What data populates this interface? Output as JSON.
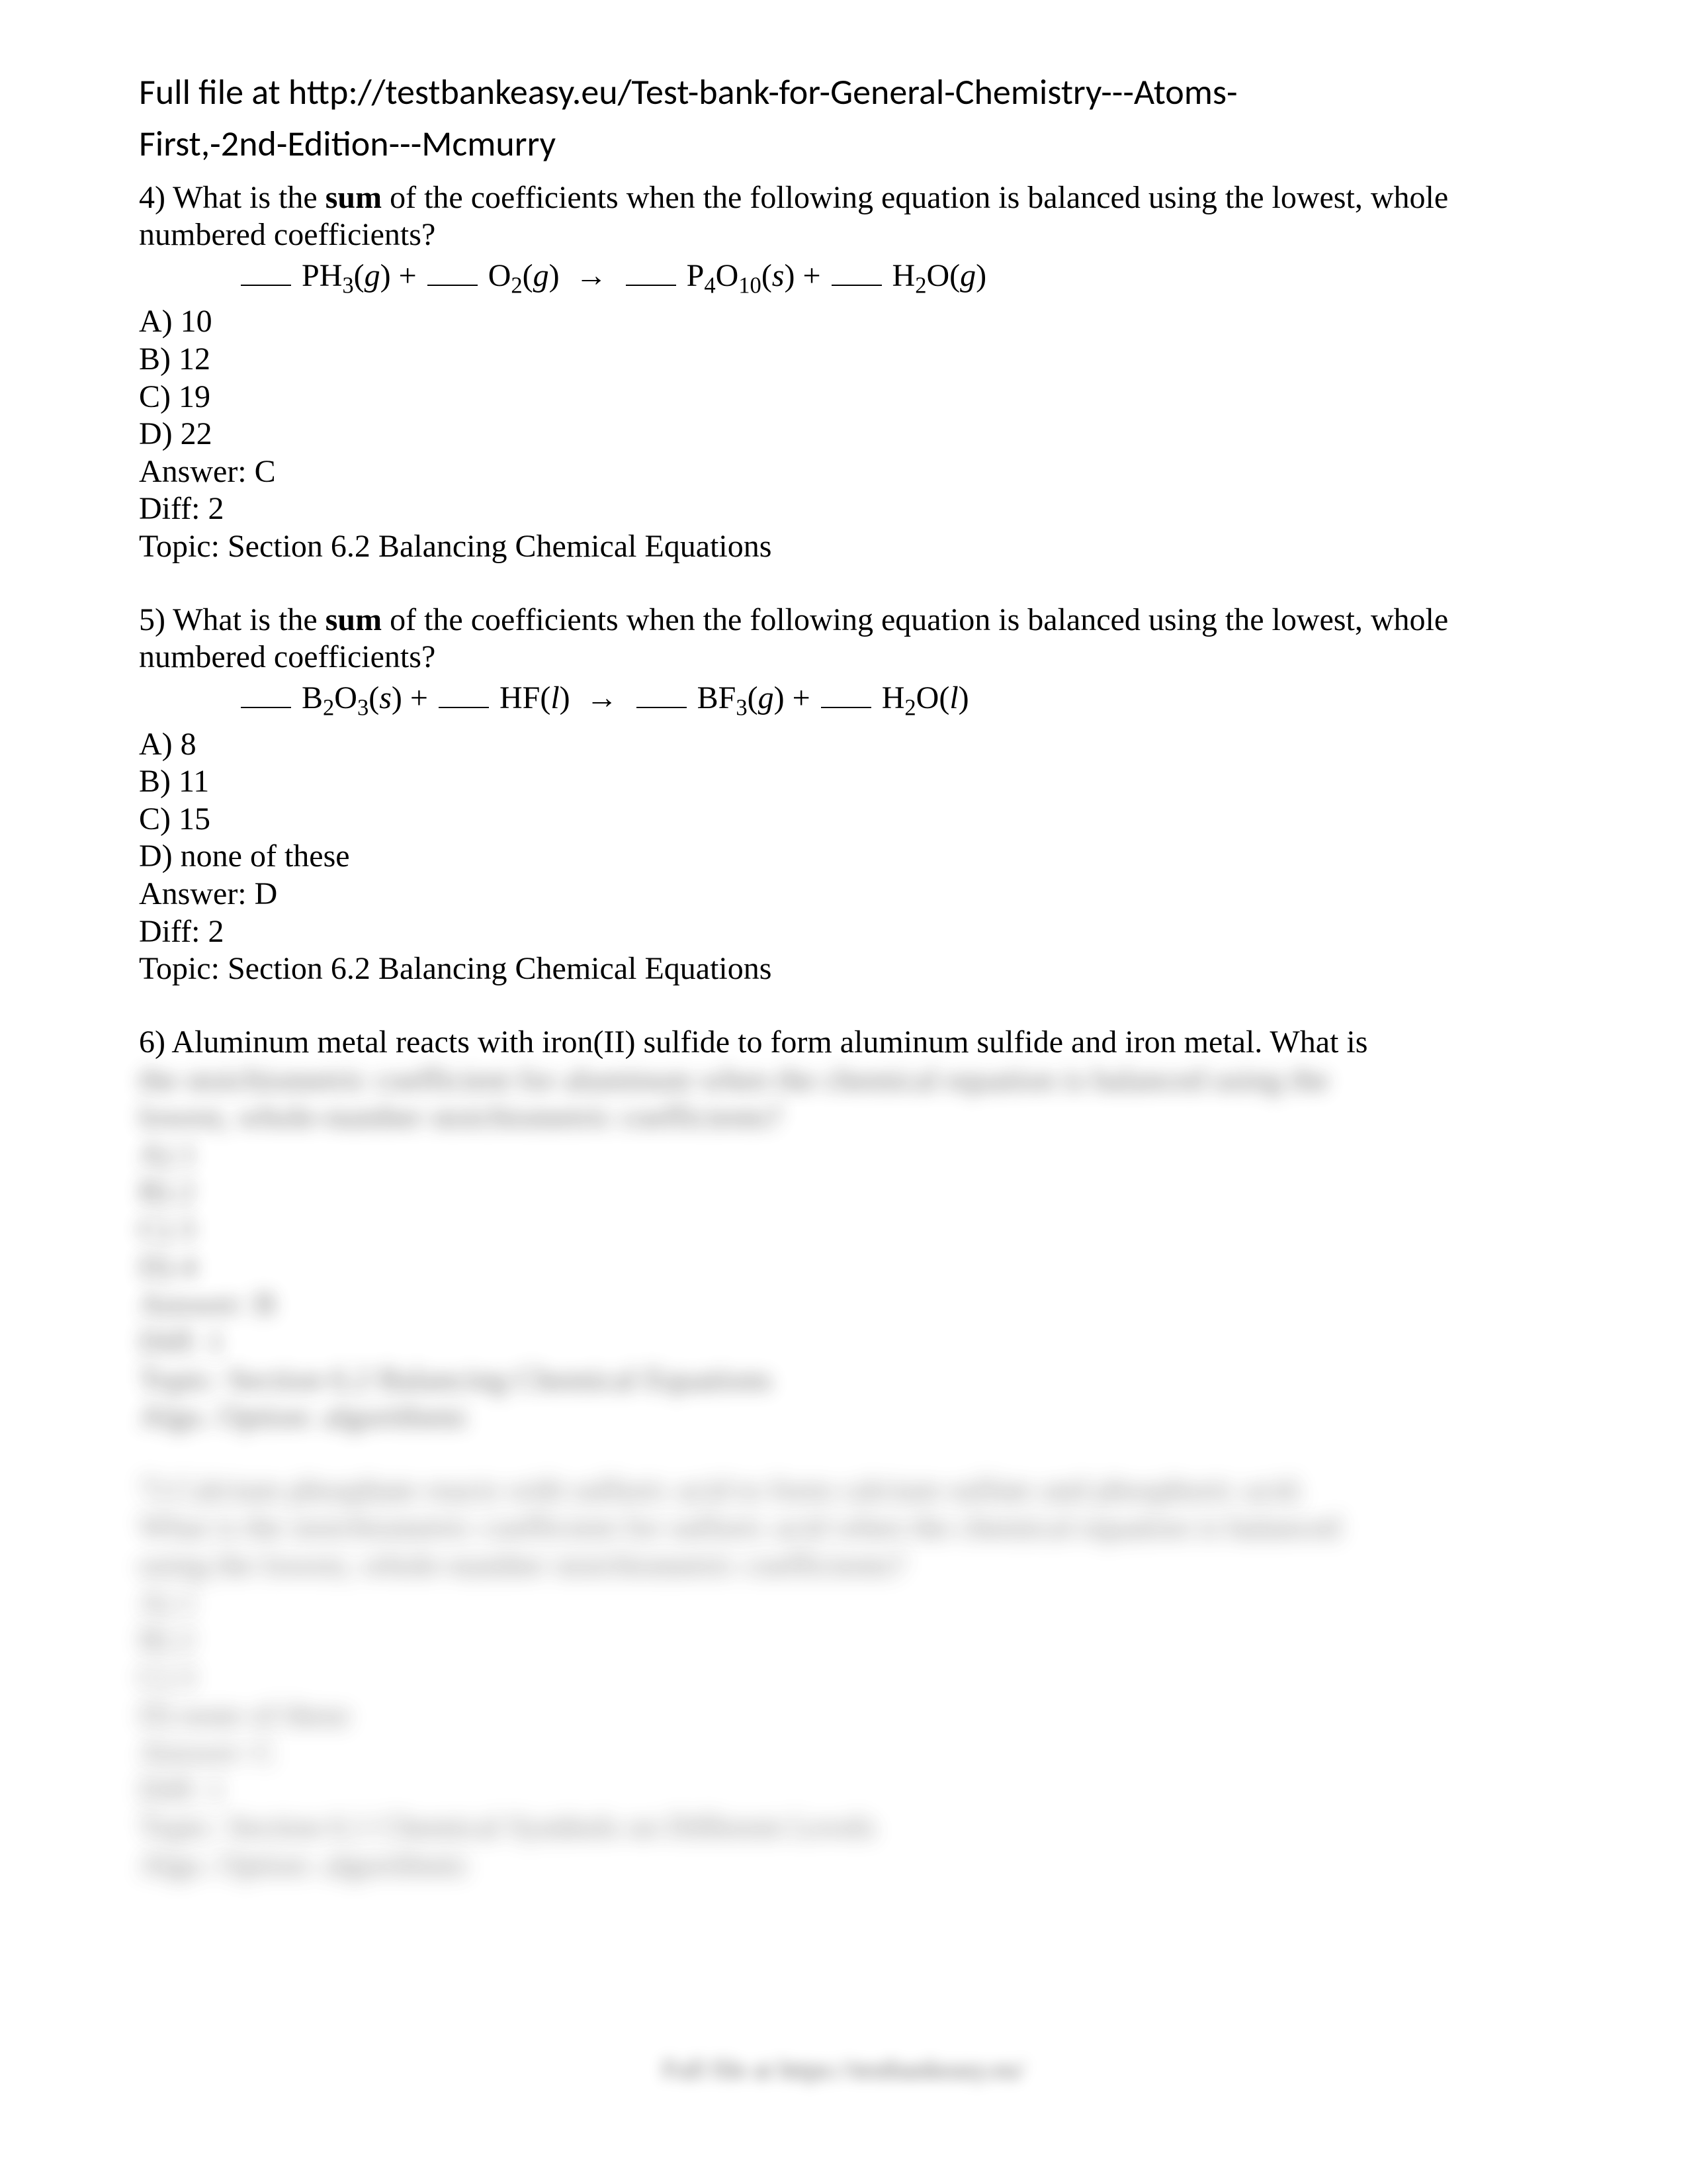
{
  "header": {
    "line1": "Full file at http://testbankeasy.eu/Test-bank-for-General-Chemistry---Atoms-",
    "line2": "First,-2nd-Edition---Mcmurry"
  },
  "q4": {
    "num": "4) ",
    "text1": "What is the ",
    "bold": "sum",
    "text2": " of the coefficients when the following equation is balanced using the lowest, whole numbered coefficients?",
    "optA": "A) 10",
    "optB": "B) 12",
    "optC": "C) 19",
    "optD": "D) 22",
    "answer": "Answer:  C",
    "diff": "Diff: 2",
    "topic": "Topic:  Section 6.2 Balancing Chemical Equations"
  },
  "q5": {
    "num": "5) ",
    "text1": "What is the ",
    "bold": "sum",
    "text2": " of the coefficients when the following equation is balanced using the lowest, whole numbered coefficients?",
    "optA": "A) 8",
    "optB": "B) 11",
    "optC": "C) 15",
    "optD": "D) none of these",
    "answer": "Answer:  D",
    "diff": "Diff: 2",
    "topic": "Topic:  Section 6.2 Balancing Chemical Equations"
  },
  "q6": {
    "visible": "6) Aluminum metal reacts with iron(II) sulfide to form aluminum sulfide and iron metal.  What is",
    "blur1": "the stoichiometric coefficient for aluminum when the chemical equation is balanced using the",
    "blur2": "lowest, whole-number stoichiometric coefficients?",
    "bA": "A) 1",
    "bB": "B) 2",
    "bC": "C) 3",
    "bD": "D) 4",
    "bAns": "Answer:  B",
    "bDiff": "Diff: 1",
    "bTopic": "Topic:  Section 6.2 Balancing Chemical Equations",
    "bAlgo": "Algo. Option:  algorithmic"
  },
  "q7": {
    "blur1": "7) Calcium phosphate reacts with sulfuric acid to form calcium sulfate and phosphoric acid.",
    "blur2": "What is the stoichiometric coefficient for sulfuric acid when the chemical equation is balanced",
    "blur3": "using the lowest, whole-number stoichiometric coefficients?",
    "bA": "A) 1",
    "bB": "B) 2",
    "bC": "C) 3",
    "bD": "D) none of these",
    "bAns": "Answer:  C",
    "bDiff": "Diff: 1",
    "bTopic": "Topic:  Section 6.1 Chemical Symbols on Different Levels",
    "bAlgo": "Algo. Option:  algorithmic"
  },
  "footer": "Full file at https://testbankeasy.eu/"
}
